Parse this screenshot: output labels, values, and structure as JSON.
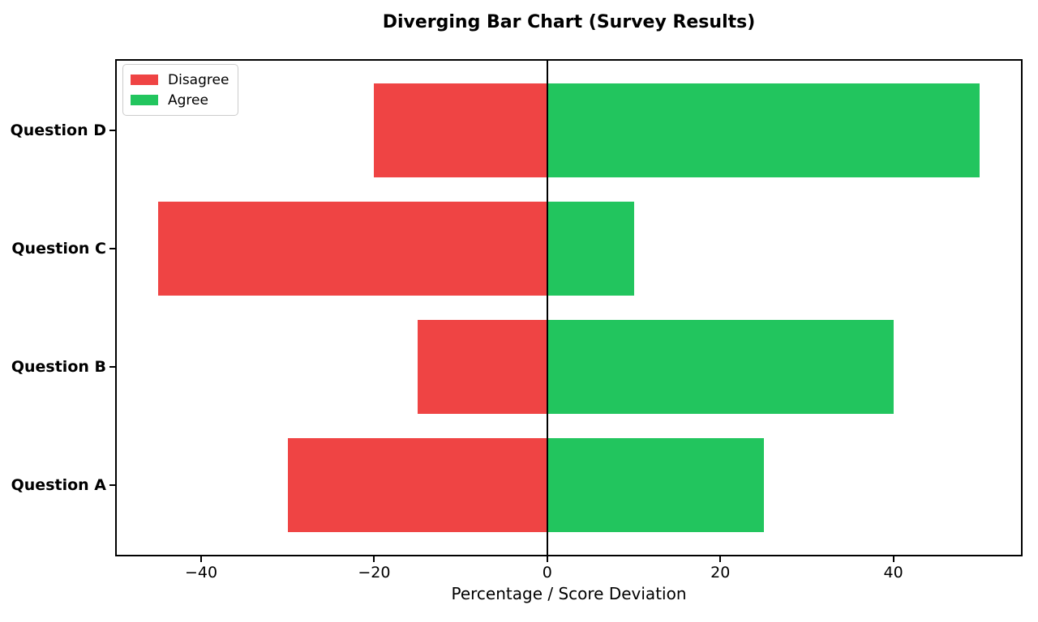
{
  "chart_data": {
    "type": "bar",
    "orientation": "horizontal",
    "diverging": true,
    "title": "Diverging Bar Chart (Survey Results)",
    "xlabel": "Percentage / Score Deviation",
    "ylabel": "",
    "categories": [
      "Question D",
      "Question C",
      "Question B",
      "Question A"
    ],
    "category_order": "top_to_bottom",
    "series": [
      {
        "name": "Disagree",
        "color": "#ef4444",
        "values": [
          -20,
          -45,
          -15,
          -30
        ]
      },
      {
        "name": "Agree",
        "color": "#22c55e",
        "values": [
          50,
          10,
          40,
          25
        ]
      }
    ],
    "x_ticks": [
      -40,
      -20,
      0,
      20,
      40
    ],
    "x_tick_labels": [
      "−40",
      "−20",
      "0",
      "20",
      "40"
    ],
    "xlim": [
      -49.75,
      54.75
    ],
    "ylim": [
      -0.59,
      3.59
    ],
    "bar_height_fraction": 0.8,
    "zero_line_x": 0,
    "grid": false,
    "legend": {
      "position": "upper-left",
      "entries": [
        {
          "label": "Disagree",
          "color": "#ef4444"
        },
        {
          "label": "Agree",
          "color": "#22c55e"
        }
      ]
    },
    "colors": {
      "spine": "#000000",
      "background": "#ffffff",
      "text": "#000000",
      "legend_border": "#cccccc"
    }
  }
}
